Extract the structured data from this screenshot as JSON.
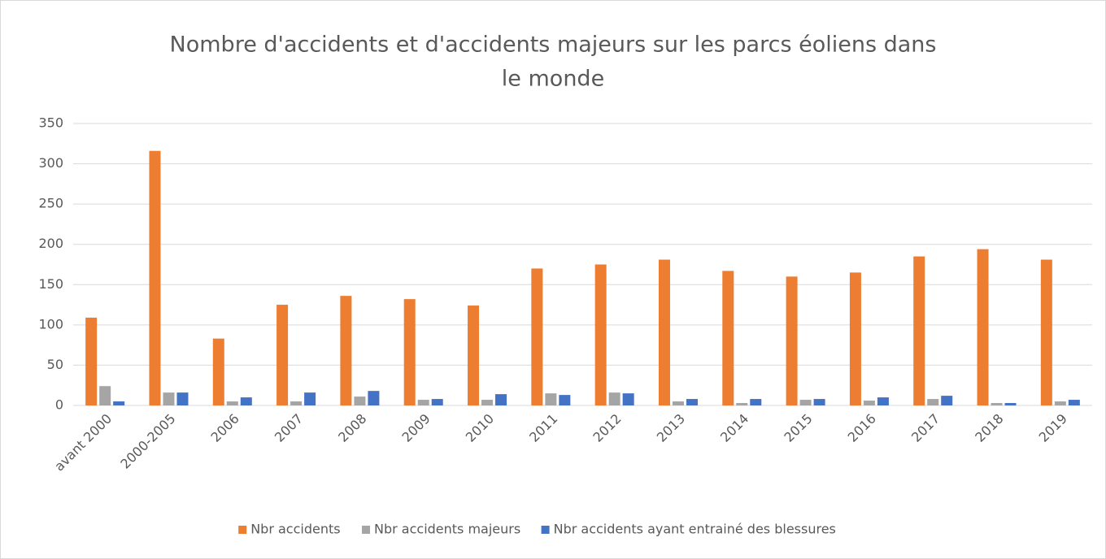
{
  "chart_data": {
    "type": "bar",
    "title_lines": [
      "Nombre d'accidents et d'accidents majeurs sur les parcs éoliens dans",
      "le monde"
    ],
    "categories": [
      "avant 2000",
      "2000-2005",
      "2006",
      "2007",
      "2008",
      "2009",
      "2010",
      "2011",
      "2012",
      "2013",
      "2014",
      "2015",
      "2016",
      "2017",
      "2018",
      "2019"
    ],
    "series": [
      {
        "name": "Nbr accidents",
        "color": "#ed7d31",
        "values": [
          109,
          316,
          83,
          125,
          136,
          132,
          124,
          170,
          175,
          181,
          167,
          160,
          165,
          185,
          194,
          181
        ]
      },
      {
        "name": "Nbr accidents majeurs",
        "color": "#a5a5a5",
        "values": [
          24,
          16,
          5,
          5,
          11,
          7,
          7,
          15,
          16,
          5,
          3,
          7,
          6,
          8,
          3,
          5
        ]
      },
      {
        "name": "Nbr accidents ayant entrainé des blessures",
        "color": "#4472c4",
        "values": [
          5,
          16,
          10,
          16,
          18,
          8,
          14,
          13,
          15,
          8,
          8,
          8,
          10,
          12,
          3,
          7
        ]
      }
    ],
    "ylim": [
      0,
      350
    ],
    "yticks": [
      0,
      50,
      100,
      150,
      200,
      250,
      300,
      350
    ],
    "grid": true,
    "legend": "bottom"
  }
}
